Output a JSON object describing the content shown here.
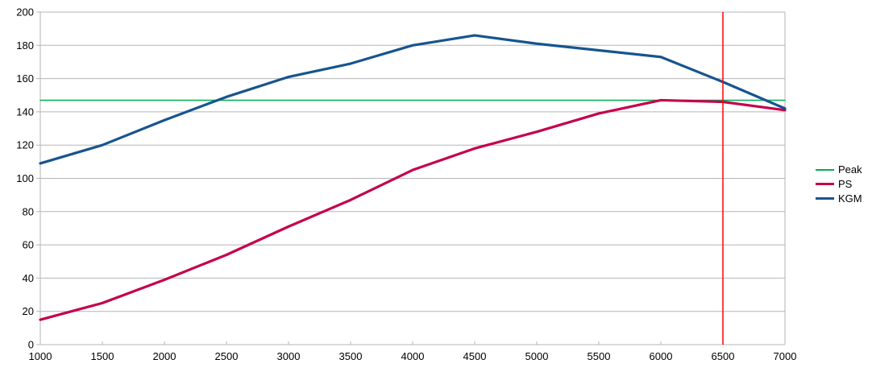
{
  "chart_data": {
    "type": "line",
    "title": "",
    "xlabel": "",
    "ylabel": "",
    "x": [
      1000,
      1500,
      2000,
      2500,
      3000,
      3500,
      4000,
      4500,
      5000,
      5500,
      6000,
      6500,
      7000
    ],
    "x_tick_labels": [
      "1000",
      "1500",
      "2000",
      "2500",
      "3000",
      "3500",
      "4000",
      "4500",
      "5000",
      "5500",
      "6000",
      "6500",
      "7000"
    ],
    "y_tick_labels": [
      "0",
      "20",
      "40",
      "60",
      "80",
      "100",
      "120",
      "140",
      "160",
      "180",
      "200"
    ],
    "y_ticks": [
      0,
      20,
      40,
      60,
      80,
      100,
      120,
      140,
      160,
      180,
      200
    ],
    "xlim": [
      1000,
      7000
    ],
    "ylim": [
      0,
      200
    ],
    "grid": "horizontal",
    "legend_position": "right",
    "colors": {
      "background": "#ffffff",
      "gridline": "#b5b5b5",
      "axis_text": "#000000",
      "marker_line": "#ff0000"
    },
    "series": [
      {
        "name": "Peak",
        "color": "#00b050",
        "width": 1.5,
        "values": [
          147,
          147,
          147,
          147,
          147,
          147,
          147,
          147,
          147,
          147,
          147,
          147,
          147
        ]
      },
      {
        "name": "PS",
        "color": "#c4024d",
        "width": 3.2,
        "values": [
          15,
          25,
          39,
          54,
          71,
          87,
          105,
          118,
          128,
          139,
          147,
          146,
          141
        ]
      },
      {
        "name": "KGM",
        "color": "#17548f",
        "width": 3.2,
        "values": [
          109,
          120,
          135,
          149,
          161,
          169,
          180,
          186,
          181,
          177,
          173,
          158,
          142
        ]
      }
    ],
    "marker_line": {
      "x": 6500,
      "color": "#ff0000",
      "width": 1.5
    }
  },
  "legend": {
    "items": [
      "Peak",
      "PS",
      "KGM"
    ]
  }
}
